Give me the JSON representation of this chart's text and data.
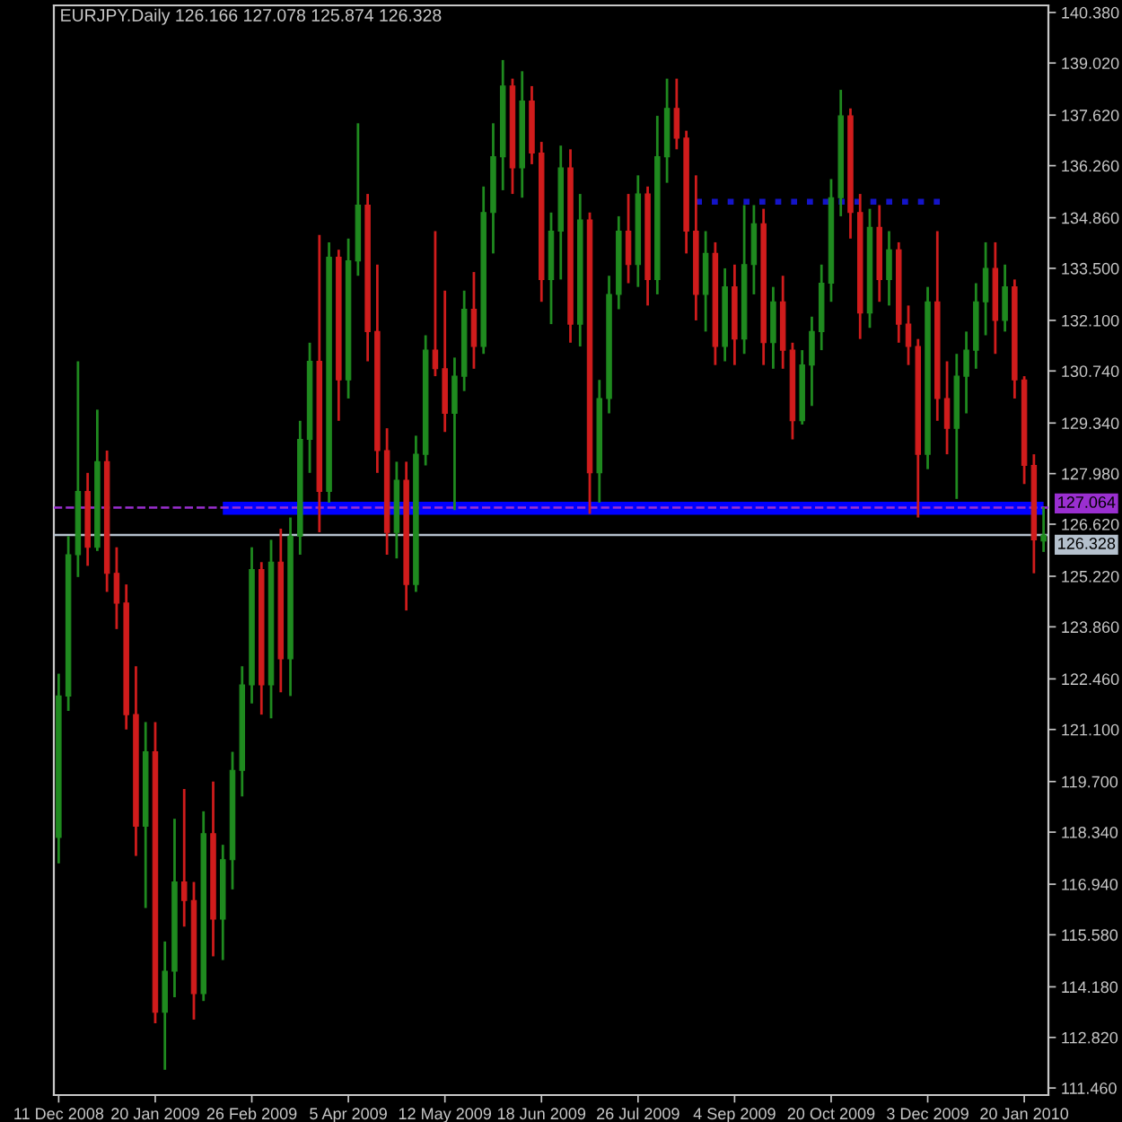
{
  "chart_data": {
    "type": "candlestick",
    "title": "EURJPY.Daily 126.166 127.078 125.874 126.328",
    "categories": [
      "11 Dec 2008",
      null,
      null,
      null,
      null,
      null,
      null,
      null,
      null,
      null,
      "20 Jan 2009",
      null,
      null,
      null,
      null,
      null,
      null,
      null,
      null,
      null,
      "26 Feb 2009",
      null,
      null,
      null,
      null,
      null,
      null,
      null,
      null,
      null,
      "5 Apr 2009",
      null,
      null,
      null,
      null,
      null,
      null,
      null,
      null,
      null,
      "12 May 2009",
      null,
      null,
      null,
      null,
      null,
      null,
      null,
      null,
      null,
      "18 Jun 2009",
      null,
      null,
      null,
      null,
      null,
      null,
      null,
      null,
      null,
      "26 Jul 2009",
      null,
      null,
      null,
      null,
      null,
      null,
      null,
      null,
      null,
      "4 Sep 2009",
      null,
      null,
      null,
      null,
      null,
      null,
      null,
      null,
      null,
      "20 Oct 2009",
      null,
      null,
      null,
      null,
      null,
      null,
      null,
      null,
      null,
      "3 Dec 2009",
      null,
      null,
      null,
      null,
      null,
      null,
      null,
      null,
      null,
      "20 Jan 2010",
      null,
      null
    ],
    "ohlc": [
      [
        118.2,
        122.6,
        117.5,
        122.0
      ],
      [
        122.0,
        126.3,
        121.6,
        125.8
      ],
      [
        125.8,
        131.0,
        125.2,
        127.5
      ],
      [
        127.5,
        128.0,
        125.5,
        126.0
      ],
      [
        126.0,
        129.7,
        125.9,
        128.3
      ],
      [
        128.3,
        128.6,
        124.8,
        125.3
      ],
      [
        125.3,
        126.0,
        123.8,
        124.5
      ],
      [
        124.5,
        125.0,
        121.1,
        121.5
      ],
      [
        121.5,
        122.8,
        117.7,
        118.5
      ],
      [
        118.5,
        121.3,
        116.3,
        120.5
      ],
      [
        120.5,
        121.3,
        113.2,
        113.5
      ],
      [
        113.5,
        115.4,
        111.95,
        114.6
      ],
      [
        114.6,
        118.7,
        113.9,
        117.0
      ],
      [
        117.0,
        119.5,
        115.8,
        116.5
      ],
      [
        116.5,
        117.0,
        113.3,
        114.0
      ],
      [
        114.0,
        118.9,
        113.8,
        118.3
      ],
      [
        118.3,
        119.7,
        115.0,
        116.0
      ],
      [
        116.0,
        118.0,
        114.9,
        117.6
      ],
      [
        117.6,
        120.5,
        116.8,
        120.0
      ],
      [
        120.0,
        122.8,
        119.3,
        122.3
      ],
      [
        122.3,
        126.0,
        121.8,
        125.4
      ],
      [
        125.4,
        125.6,
        121.5,
        122.3
      ],
      [
        122.3,
        126.2,
        121.4,
        125.6
      ],
      [
        125.6,
        126.5,
        122.1,
        123.0
      ],
      [
        123.0,
        126.8,
        122.0,
        126.3
      ],
      [
        126.3,
        129.4,
        125.8,
        128.9
      ],
      [
        128.9,
        131.5,
        128.0,
        131.0
      ],
      [
        131.0,
        134.4,
        126.4,
        127.5
      ],
      [
        127.5,
        134.2,
        127.2,
        133.8
      ],
      [
        133.8,
        134.0,
        129.4,
        130.5
      ],
      [
        130.5,
        134.3,
        130.0,
        133.7
      ],
      [
        133.7,
        137.4,
        133.3,
        135.2
      ],
      [
        135.2,
        135.5,
        131.0,
        131.8
      ],
      [
        131.8,
        133.6,
        128.0,
        128.6
      ],
      [
        128.6,
        129.2,
        125.8,
        126.4
      ],
      [
        126.4,
        128.3,
        125.7,
        127.8
      ],
      [
        127.8,
        128.3,
        124.3,
        125.0
      ],
      [
        125.0,
        129.0,
        124.8,
        128.5
      ],
      [
        128.5,
        131.7,
        128.2,
        131.3
      ],
      [
        131.3,
        134.5,
        130.6,
        130.8
      ],
      [
        130.8,
        132.9,
        129.1,
        129.6
      ],
      [
        129.6,
        131.1,
        127.0,
        130.6
      ],
      [
        130.6,
        132.9,
        130.2,
        132.4
      ],
      [
        132.4,
        133.4,
        130.8,
        131.4
      ],
      [
        131.4,
        135.7,
        131.2,
        135.0
      ],
      [
        135.0,
        137.4,
        133.9,
        136.5
      ],
      [
        136.5,
        139.1,
        135.6,
        138.4
      ],
      [
        138.4,
        138.6,
        135.5,
        136.2
      ],
      [
        136.2,
        138.8,
        135.4,
        138.0
      ],
      [
        138.0,
        138.4,
        136.3,
        136.6
      ],
      [
        136.6,
        136.9,
        132.6,
        133.2
      ],
      [
        133.2,
        135.0,
        132.0,
        134.5
      ],
      [
        134.5,
        136.8,
        133.2,
        136.2
      ],
      [
        136.2,
        136.7,
        131.5,
        132.0
      ],
      [
        132.0,
        135.5,
        131.4,
        134.8
      ],
      [
        134.8,
        135.0,
        126.9,
        128.0
      ],
      [
        128.0,
        130.5,
        127.2,
        130.0
      ],
      [
        130.0,
        133.3,
        129.6,
        132.8
      ],
      [
        132.8,
        134.9,
        132.4,
        134.5
      ],
      [
        134.5,
        135.5,
        133.1,
        133.6
      ],
      [
        133.6,
        136.0,
        133.0,
        135.5
      ],
      [
        135.5,
        135.7,
        132.5,
        133.2
      ],
      [
        133.2,
        137.6,
        132.8,
        136.5
      ],
      [
        136.5,
        138.6,
        135.8,
        137.8
      ],
      [
        137.8,
        138.6,
        136.7,
        137.0
      ],
      [
        137.0,
        137.2,
        133.9,
        134.5
      ],
      [
        134.5,
        136.0,
        132.1,
        132.8
      ],
      [
        132.8,
        134.5,
        131.8,
        133.9
      ],
      [
        133.9,
        134.2,
        130.9,
        131.4
      ],
      [
        131.4,
        133.5,
        131.0,
        133.0
      ],
      [
        133.0,
        133.6,
        130.9,
        131.6
      ],
      [
        131.6,
        135.2,
        131.2,
        133.6
      ],
      [
        133.6,
        135.2,
        132.8,
        134.7
      ],
      [
        134.7,
        135.1,
        130.9,
        131.5
      ],
      [
        131.5,
        133.0,
        130.8,
        132.6
      ],
      [
        132.6,
        133.3,
        130.8,
        131.3
      ],
      [
        131.3,
        131.5,
        128.9,
        129.4
      ],
      [
        129.4,
        131.3,
        129.3,
        130.9
      ],
      [
        130.9,
        132.2,
        129.8,
        131.8
      ],
      [
        131.8,
        133.6,
        131.3,
        133.1
      ],
      [
        133.1,
        135.9,
        132.6,
        135.4
      ],
      [
        135.4,
        138.3,
        134.9,
        137.6
      ],
      [
        137.6,
        137.8,
        134.3,
        135.0
      ],
      [
        135.0,
        135.5,
        131.6,
        132.3
      ],
      [
        132.3,
        135.1,
        131.9,
        134.6
      ],
      [
        134.6,
        135.2,
        132.6,
        133.2
      ],
      [
        133.2,
        134.5,
        132.5,
        134.0
      ],
      [
        134.0,
        134.2,
        131.5,
        132.0
      ],
      [
        132.0,
        132.5,
        130.9,
        131.4
      ],
      [
        131.4,
        131.6,
        126.8,
        128.5
      ],
      [
        128.5,
        133.0,
        128.1,
        132.6
      ],
      [
        132.6,
        134.5,
        129.4,
        130.0
      ],
      [
        130.0,
        131.0,
        128.5,
        129.2
      ],
      [
        129.2,
        131.2,
        127.3,
        130.6
      ],
      [
        130.6,
        131.8,
        129.6,
        131.3
      ],
      [
        131.3,
        133.1,
        130.8,
        132.6
      ],
      [
        132.6,
        134.2,
        131.7,
        133.5
      ],
      [
        133.5,
        134.2,
        131.2,
        132.1
      ],
      [
        132.1,
        133.6,
        131.8,
        133.0
      ],
      [
        133.0,
        133.2,
        130.0,
        130.5
      ],
      [
        130.5,
        130.6,
        127.7,
        128.2
      ],
      [
        128.2,
        128.5,
        125.3,
        126.2
      ],
      [
        126.166,
        127.078,
        125.874,
        126.328
      ]
    ],
    "colors": [
      "#1f8a1f",
      "#1f8a1f",
      "#1f8a1f",
      "#d01c1c",
      "#1f8a1f",
      "#d01c1c",
      "#d01c1c",
      "#d01c1c",
      "#d01c1c",
      "#1f8a1f",
      "#d01c1c",
      "#1f8a1f",
      "#1f8a1f",
      "#d01c1c",
      "#d01c1c",
      "#1f8a1f",
      "#d01c1c",
      "#1f8a1f",
      "#1f8a1f",
      "#1f8a1f",
      "#1f8a1f",
      "#d01c1c",
      "#1f8a1f",
      "#d01c1c",
      "#1f8a1f",
      "#1f8a1f",
      "#1f8a1f",
      "#d01c1c",
      "#1f8a1f",
      "#d01c1c",
      "#1f8a1f",
      "#1f8a1f",
      "#d01c1c",
      "#d01c1c",
      "#d01c1c",
      "#1f8a1f",
      "#d01c1c",
      "#1f8a1f",
      "#1f8a1f",
      "#d01c1c",
      "#d01c1c",
      "#1f8a1f",
      "#1f8a1f",
      "#d01c1c",
      "#1f8a1f",
      "#1f8a1f",
      "#1f8a1f",
      "#d01c1c",
      "#1f8a1f",
      "#d01c1c",
      "#d01c1c",
      "#1f8a1f",
      "#1f8a1f",
      "#d01c1c",
      "#1f8a1f",
      "#d01c1c",
      "#1f8a1f",
      "#1f8a1f",
      "#1f8a1f",
      "#d01c1c",
      "#1f8a1f",
      "#d01c1c",
      "#1f8a1f",
      "#1f8a1f",
      "#d01c1c",
      "#d01c1c",
      "#d01c1c",
      "#1f8a1f",
      "#d01c1c",
      "#1f8a1f",
      "#d01c1c",
      "#1f8a1f",
      "#1f8a1f",
      "#d01c1c",
      "#1f8a1f",
      "#d01c1c",
      "#d01c1c",
      "#1f8a1f",
      "#1f8a1f",
      "#1f8a1f",
      "#1f8a1f",
      "#1f8a1f",
      "#d01c1c",
      "#d01c1c",
      "#1f8a1f",
      "#d01c1c",
      "#1f8a1f",
      "#d01c1c",
      "#d01c1c",
      "#d01c1c",
      "#1f8a1f",
      "#d01c1c",
      "#d01c1c",
      "#1f8a1f",
      "#1f8a1f",
      "#1f8a1f",
      "#1f8a1f",
      "#d01c1c",
      "#1f8a1f",
      "#d01c1c",
      "#d01c1c",
      "#d01c1c",
      "#1f8a1f"
    ],
    "series": [
      {
        "type": "line",
        "color": "#0000ff",
        "line_style": "solid",
        "values": [
          null,
          null,
          null,
          null,
          null,
          null,
          null,
          null,
          null,
          null,
          null,
          null,
          null,
          null,
          null,
          null,
          null,
          127.05,
          127.05,
          127.05,
          127.05,
          127.05,
          127.05,
          127.05,
          127.05,
          127.05,
          127.05,
          127.05,
          127.05,
          127.05,
          127.05,
          127.05,
          127.05,
          127.05,
          127.05,
          127.05,
          127.05,
          127.05,
          127.05,
          127.05,
          127.05,
          127.05,
          127.05,
          127.05,
          127.05,
          127.05,
          127.05,
          127.05,
          127.05,
          127.05,
          127.05,
          127.05,
          127.05,
          127.05,
          127.05,
          127.05,
          127.05,
          127.05,
          127.05,
          127.05,
          127.05,
          127.05,
          127.05,
          127.05,
          127.05,
          127.05,
          127.05,
          127.05,
          127.05,
          127.05,
          127.05,
          127.05,
          127.05,
          127.05,
          127.05,
          127.05,
          127.05,
          127.05,
          127.05,
          127.05,
          127.05,
          127.05,
          127.05,
          127.05,
          127.05,
          127.05,
          127.05,
          127.05,
          127.05,
          127.05,
          127.05,
          127.05,
          127.05,
          127.05,
          127.05,
          127.05,
          127.05,
          127.05,
          127.05,
          127.05,
          127.05,
          127.05,
          127.05
        ]
      },
      {
        "type": "line",
        "color": "#1414c8",
        "line_style": "dotted",
        "values": [
          null,
          null,
          null,
          null,
          null,
          null,
          null,
          null,
          null,
          null,
          null,
          null,
          null,
          null,
          null,
          null,
          null,
          null,
          null,
          null,
          null,
          null,
          null,
          null,
          null,
          null,
          null,
          null,
          null,
          null,
          null,
          null,
          null,
          null,
          null,
          null,
          null,
          null,
          null,
          null,
          null,
          null,
          null,
          null,
          null,
          null,
          null,
          null,
          null,
          null,
          null,
          null,
          null,
          null,
          null,
          null,
          null,
          null,
          null,
          null,
          null,
          null,
          null,
          null,
          null,
          null,
          135.29,
          135.29,
          135.29,
          135.29,
          135.29,
          135.29,
          135.29,
          135.29,
          135.29,
          135.29,
          135.29,
          135.29,
          135.29,
          135.29,
          135.29,
          135.29,
          135.29,
          135.29,
          135.29,
          135.29,
          135.29,
          135.29,
          135.29,
          135.29,
          135.29,
          135.29,
          135.29,
          null,
          null,
          null,
          null,
          null,
          null,
          null,
          null,
          null,
          null
        ]
      }
    ],
    "ylim": [
      111.27,
      140.57
    ],
    "yticks": [
      {
        "value": 140.38,
        "label": "140.380"
      },
      {
        "value": 139.02,
        "label": "139.020"
      },
      {
        "value": 137.62,
        "label": "137.620"
      },
      {
        "value": 136.26,
        "label": "136.260"
      },
      {
        "value": 134.86,
        "label": "134.860"
      },
      {
        "value": 133.5,
        "label": "133.500"
      },
      {
        "value": 132.1,
        "label": "132.100"
      },
      {
        "value": 130.74,
        "label": "130.740"
      },
      {
        "value": 129.34,
        "label": "129.340"
      },
      {
        "value": 127.98,
        "label": "127.980"
      },
      {
        "value": 126.62,
        "label": "126.620"
      },
      {
        "value": 125.22,
        "label": "125.220"
      },
      {
        "value": 123.86,
        "label": "123.860"
      },
      {
        "value": 122.46,
        "label": "122.460"
      },
      {
        "value": 121.1,
        "label": "121.100"
      },
      {
        "value": 119.7,
        "label": "119.700"
      },
      {
        "value": 118.34,
        "label": "118.340"
      },
      {
        "value": 116.94,
        "label": "116.940"
      },
      {
        "value": 115.58,
        "label": "115.580"
      },
      {
        "value": 114.18,
        "label": "114.180"
      },
      {
        "value": 112.82,
        "label": "112.820"
      },
      {
        "value": 111.46,
        "label": "111.460"
      }
    ],
    "ref_lines": [
      {
        "axis": "y",
        "value": 127.064,
        "label": "127.064",
        "color": "#9a2fd0",
        "line_style": "dashed"
      },
      {
        "axis": "y",
        "value": 126.328,
        "label": "126.328",
        "color": "#b4c0cc",
        "line_style": "solid"
      }
    ]
  }
}
